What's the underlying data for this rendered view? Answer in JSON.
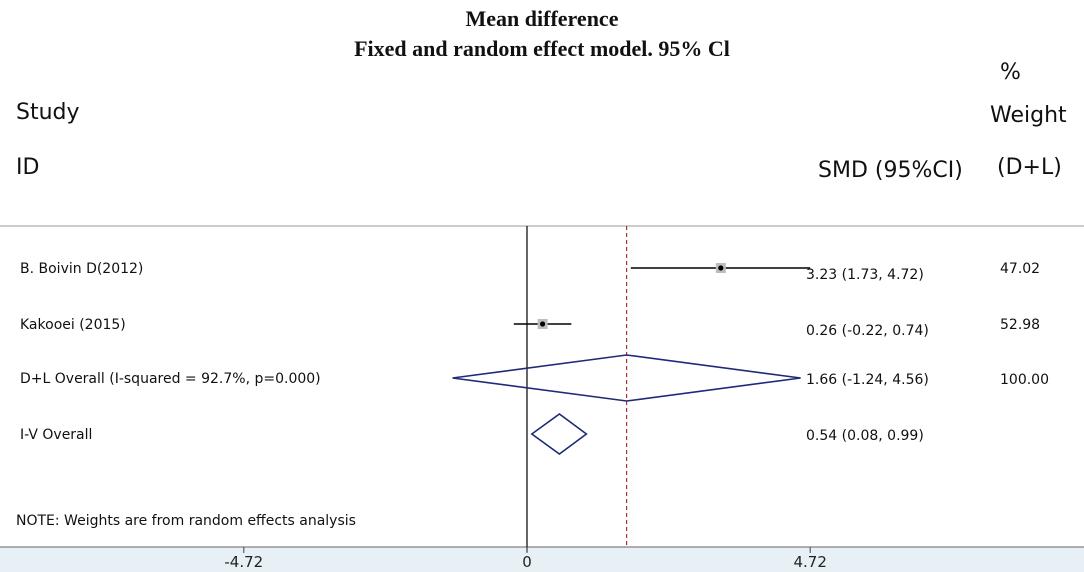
{
  "chart_data": {
    "type": "forest",
    "title": "Mean difference",
    "subtitle": "Fixed and random effect model. 95% Cl",
    "headers": {
      "study_line1": "Study",
      "study_line2": "ID",
      "effect": "SMD (95%CI)",
      "weight_line1": "%",
      "weight_line2": "Weight",
      "weight_line3": "(D+L)"
    },
    "studies": [
      {
        "label": "B. Boivin D(2012)",
        "estimate": 3.23,
        "lower": 1.73,
        "upper": 4.72,
        "text": "3.23 (1.73, 4.72)",
        "weight": "47.02"
      },
      {
        "label": "Kakooei (2015)",
        "estimate": 0.26,
        "lower": -0.22,
        "upper": 0.74,
        "text": "0.26 (-0.22, 0.74)",
        "weight": "52.98"
      }
    ],
    "overall": [
      {
        "label": "D+L Overall (I-squared = 92.7%, p=0.000)",
        "estimate": 1.66,
        "lower": -1.24,
        "upper": 4.56,
        "text": "1.66 (-1.24, 4.56)",
        "weight": "100.00"
      },
      {
        "label": "I-V Overall",
        "estimate": 0.54,
        "lower": 0.08,
        "upper": 0.99,
        "text": "0.54 (0.08, 0.99)",
        "weight": ""
      }
    ],
    "note": "NOTE: Weights are from random effects analysis",
    "x_ticks": [
      {
        "value": -4.72,
        "label": "-4.72"
      },
      {
        "value": 0,
        "label": "0"
      },
      {
        "value": 4.72,
        "label": "4.72"
      }
    ],
    "null_line": 0,
    "reference_line": 1.66,
    "colors": {
      "diamond": "#1f2a78",
      "reference": "#b03030",
      "ci": "#000000",
      "axis_strip": "#e7f1f5"
    }
  }
}
